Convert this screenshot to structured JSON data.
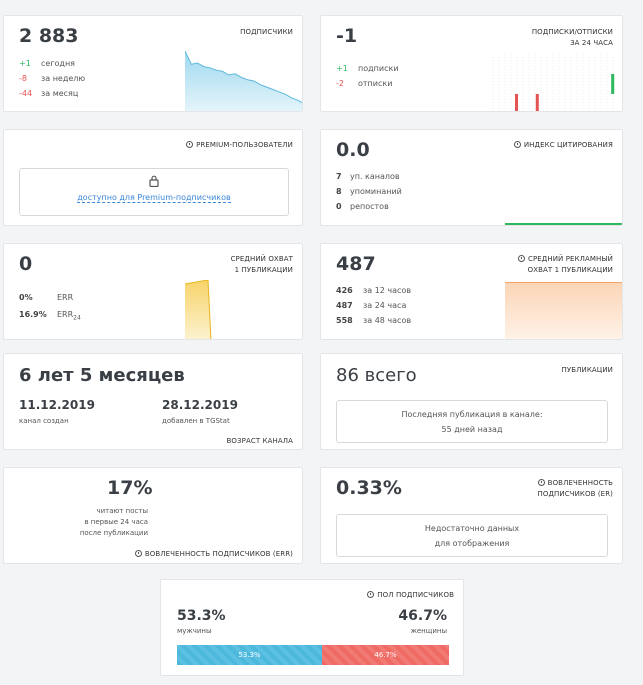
{
  "subscribers": {
    "count": "2 883",
    "title": "подписчики",
    "rows": [
      {
        "value": "+1",
        "label": "сегодня"
      },
      {
        "value": "-8",
        "label": "за неделю"
      },
      {
        "value": "-44",
        "label": "за месяц"
      }
    ],
    "chart_data": {
      "type": "area",
      "title": "",
      "values": [
        1.0,
        0.78,
        0.8,
        0.74,
        0.72,
        0.68,
        0.66,
        0.6,
        0.62,
        0.56,
        0.52,
        0.5,
        0.44,
        0.4,
        0.36,
        0.32,
        0.28,
        0.22,
        0.18,
        0.12
      ],
      "color": "#5bb8dc"
    }
  },
  "subs_unsubs": {
    "count": "-1",
    "title_line1": "подписки/отписки",
    "title_line2": "за 24 часа",
    "rows": [
      {
        "value": "+1",
        "label": "подписки"
      },
      {
        "value": "-2",
        "label": "отписки"
      }
    ],
    "chart_data": {
      "type": "bar",
      "title": "",
      "series": [
        {
          "color": "#2eb85c",
          "values": [
            {
              "x": 0.94,
              "y": 1
            }
          ]
        },
        {
          "color": "#e55353",
          "values": [
            {
              "x": 0.2,
              "y": 1
            },
            {
              "x": 0.36,
              "y": 1
            }
          ]
        }
      ]
    }
  },
  "premium": {
    "title": "premium-пользователи",
    "lock_text": "доступно для Premium-подписчиков"
  },
  "citation": {
    "value": "0.0",
    "title": "индекс цитирования",
    "rows": [
      {
        "value": "7",
        "label": "уп. каналов"
      },
      {
        "value": "8",
        "label": "упоминаний"
      },
      {
        "value": "0",
        "label": "репостов"
      }
    ]
  },
  "avg_reach": {
    "value": "0",
    "title_line1": "средний охват",
    "title_line2": "1 публикации",
    "rows": [
      {
        "value": "0%",
        "label": "ERR",
        "sub": ""
      },
      {
        "value": "16.9%",
        "label": "ERR",
        "sub": "24"
      }
    ]
  },
  "ad_reach": {
    "value": "487",
    "title_line1": "средний рекламный",
    "title_line2": "охват 1 публикации",
    "rows": [
      {
        "value": "426",
        "label": "за 12 часов"
      },
      {
        "value": "487",
        "label": "за 24 часа"
      },
      {
        "value": "558",
        "label": "за 48 часов"
      }
    ]
  },
  "channel_age": {
    "value": "6 лет 5 месяцев",
    "created_date": "11.12.2019",
    "created_label": "канал создан",
    "added_date": "28.12.2019",
    "added_label": "добавлен в TGStat",
    "title": "возраст канала"
  },
  "publications": {
    "value": "86 всего",
    "title": "публикации",
    "box_line1": "Последняя публикация в канале:",
    "box_line2": "55 дней назад"
  },
  "err_engagement": {
    "value": "17%",
    "desc_line1": "читают посты",
    "desc_line2": "в первые 24 часа",
    "desc_line3": "после публикации",
    "title": "вовлеченность подписчиков (ERR)"
  },
  "er_engagement": {
    "value": "0.33%",
    "title_line1": "вовлеченность",
    "title_line2": "подписчиков (ER)",
    "box_line1": "Недостаточно данных",
    "box_line2": "для отображения"
  },
  "gender": {
    "title": "пол подписчиков",
    "male_pct": "53.3%",
    "male_label": "мужчины",
    "female_pct": "46.7%",
    "female_label": "женщины",
    "bar_male": "53.3%",
    "bar_female": "46.7%",
    "male_fraction": 0.533,
    "male_color": "#4cb8dc",
    "female_color": "#f06a64"
  }
}
